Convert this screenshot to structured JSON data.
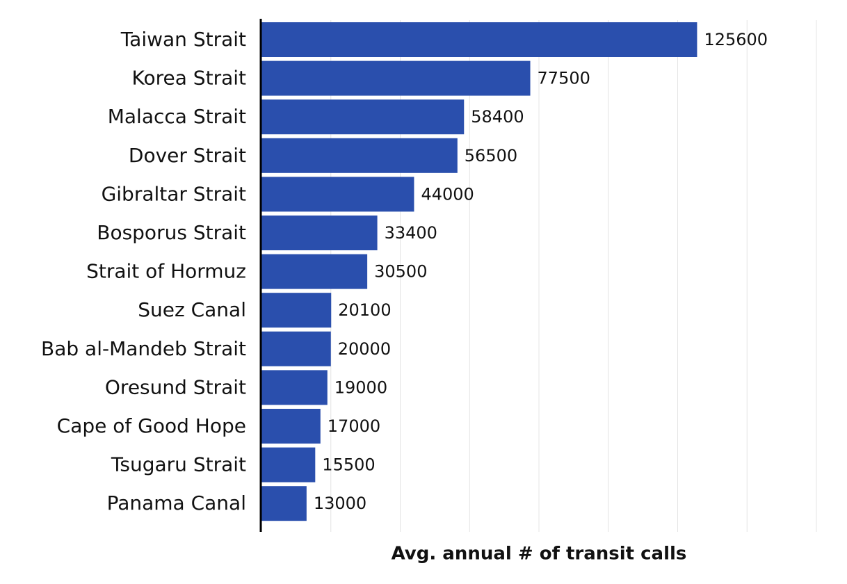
{
  "chart_data": {
    "type": "bar",
    "orientation": "horizontal",
    "x_label": "Avg. annual # of transit calls",
    "categories": [
      "Taiwan Strait",
      "Korea Strait",
      "Malacca Strait",
      "Dover Strait",
      "Gibraltar Strait",
      "Bosporus Strait",
      "Strait of Hormuz",
      "Suez Canal",
      "Bab al-Mandeb Strait",
      "Oresund Strait",
      "Cape of Good Hope",
      "Tsugaru Strait",
      "Panama Canal"
    ],
    "values": [
      125600,
      77500,
      58400,
      56500,
      44000,
      33400,
      30500,
      20100,
      20000,
      19000,
      17000,
      15500,
      13000
    ],
    "color": "#2a4fad",
    "xlim": [
      0,
      160000
    ],
    "xticks": [
      20000,
      40000,
      60000,
      80000,
      100000,
      120000,
      140000,
      160000
    ],
    "grid": true
  }
}
